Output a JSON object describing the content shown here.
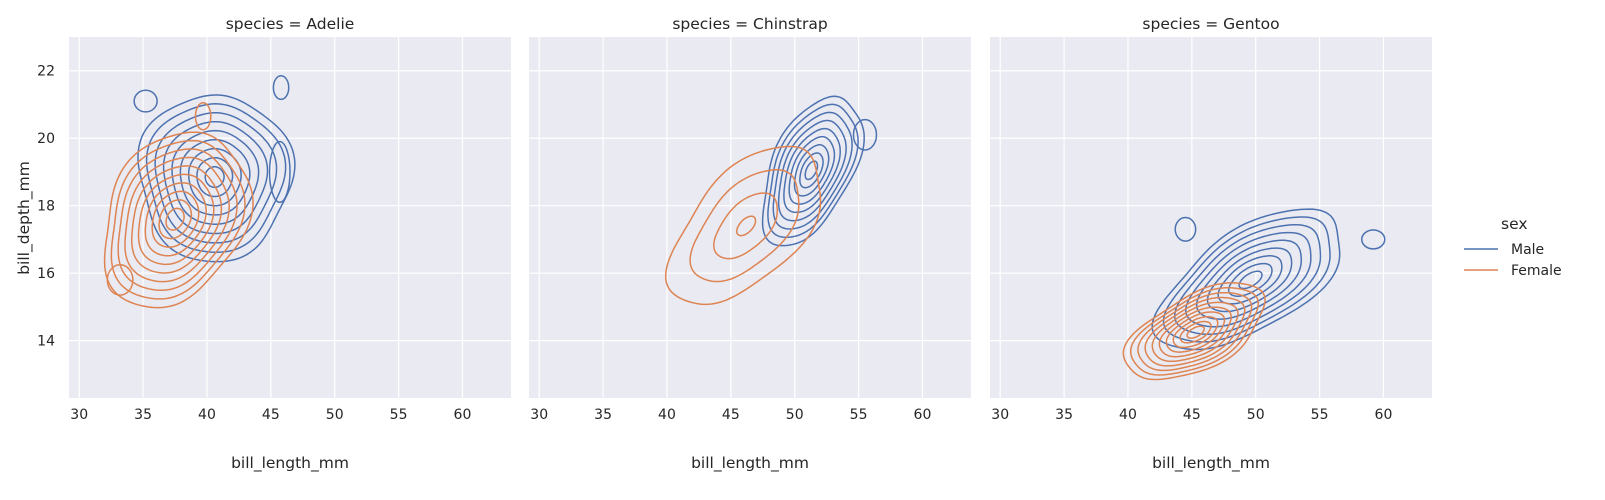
{
  "chart_data": {
    "type": "kde-contour",
    "style": {
      "panel_bg": "#eaeaf2",
      "grid_color": "#ffffff",
      "grid": true,
      "series_colors": {
        "Male": "#4c72b0",
        "Female": "#dd8452"
      }
    },
    "xlabel": "bill_length_mm",
    "ylabel": "bill_depth_mm",
    "xlim": [
      29.2,
      63.8
    ],
    "ylim": [
      12.3,
      23.0
    ],
    "xticks": [
      30,
      35,
      40,
      45,
      50,
      55,
      60
    ],
    "yticks": [
      14,
      16,
      18,
      20,
      22
    ],
    "legend": {
      "title": "sex",
      "position": "right",
      "entries": [
        "Male",
        "Female"
      ]
    },
    "panels": [
      {
        "title": "species = Adelie",
        "series": [
          {
            "name": "Male",
            "center": [
              40.6,
              18.85
            ],
            "sd": [
              2.3,
              0.95
            ],
            "corr": 0.0,
            "levels": 9,
            "bumps": [
              {
                "at": [
                  35.2,
                  21.1
                ],
                "r": [
                  0.9,
                  0.32
                ]
              },
              {
                "at": [
                  45.8,
                  21.5
                ],
                "r": [
                  0.6,
                  0.35
                ]
              },
              {
                "at": [
                  45.7,
                  19.0
                ],
                "r": [
                  0.8,
                  0.9
                ]
              }
            ]
          },
          {
            "name": "Female",
            "center": [
              37.5,
              17.6
            ],
            "sd": [
              2.2,
              1.0
            ],
            "corr": 0.25,
            "levels": 10,
            "bumps": [
              {
                "at": [
                  39.7,
                  20.65
                ],
                "r": [
                  0.6,
                  0.4
                ]
              },
              {
                "at": [
                  33.2,
                  15.8
                ],
                "r": [
                  1.0,
                  0.45
                ]
              }
            ]
          }
        ]
      },
      {
        "title": "species = Chinstrap",
        "series": [
          {
            "name": "Male",
            "center": [
              51.3,
              19.05
            ],
            "sd": [
              1.5,
              0.85
            ],
            "corr": 0.5,
            "levels": 9,
            "bumps": [
              {
                "at": [
                  55.5,
                  20.1
                ],
                "r": [
                  0.9,
                  0.45
                ]
              }
            ]
          },
          {
            "name": "Female",
            "center": [
              46.2,
              17.4
            ],
            "sd": [
              2.3,
              0.9
            ],
            "corr": 0.55,
            "levels": 4,
            "bumps": []
          }
        ]
      },
      {
        "title": "species = Gentoo",
        "series": [
          {
            "name": "Male",
            "center": [
              49.6,
              15.8
            ],
            "sd": [
              2.8,
              0.8
            ],
            "corr": 0.6,
            "levels": 9,
            "bumps": [
              {
                "at": [
                  44.5,
                  17.3
                ],
                "r": [
                  0.8,
                  0.35
                ]
              },
              {
                "at": [
                  59.2,
                  17.0
                ],
                "r": [
                  0.9,
                  0.28
                ]
              }
            ]
          },
          {
            "name": "Female",
            "center": [
              45.3,
              14.25
            ],
            "sd": [
              2.1,
              0.55
            ],
            "corr": 0.55,
            "levels": 10,
            "bumps": []
          }
        ]
      }
    ]
  }
}
